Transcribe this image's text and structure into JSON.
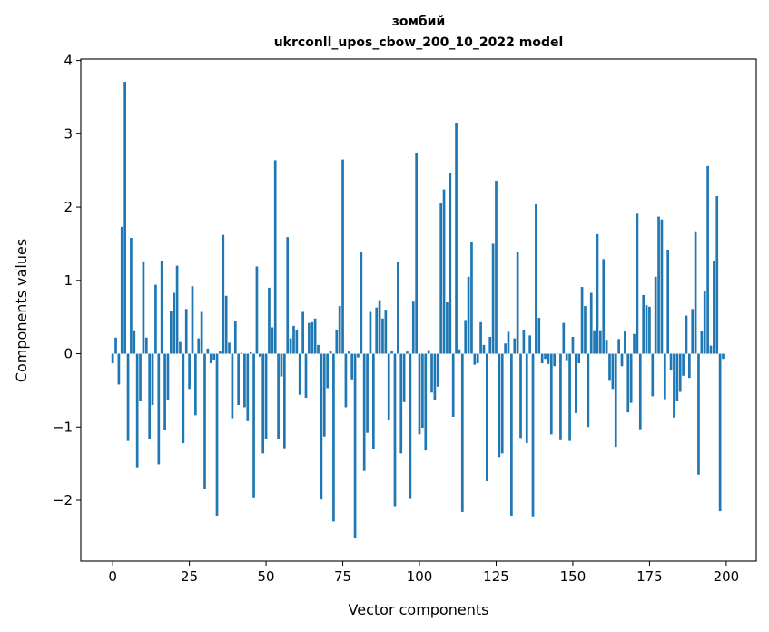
{
  "chart_data": {
    "type": "bar",
    "title": [
      "зомбий",
      "ukrconll_upos_cbow_200_10_2022 model"
    ],
    "xlabel": "Vector components",
    "ylabel": "Components values",
    "xlim": [
      -10.4,
      209.8
    ],
    "ylim": [
      -2.83,
      4.02
    ],
    "xticks": [
      0,
      25,
      50,
      75,
      100,
      125,
      150,
      175,
      200
    ],
    "yticks": [
      -2,
      -1,
      0,
      1,
      2,
      3,
      4
    ],
    "xtick_labels": [
      "0",
      "25",
      "50",
      "75",
      "100",
      "125",
      "150",
      "175",
      "200"
    ],
    "ytick_labels": [
      "−2",
      "−1",
      "0",
      "1",
      "2",
      "3",
      "4"
    ],
    "grid": false,
    "color": "#1f77b4",
    "values": [
      -0.13,
      0.22,
      -0.42,
      1.73,
      3.71,
      -1.19,
      1.58,
      0.32,
      -1.55,
      -0.65,
      1.26,
      0.22,
      -1.17,
      -0.7,
      0.94,
      -1.51,
      1.27,
      -1.04,
      -0.63,
      0.58,
      0.83,
      1.2,
      0.16,
      -1.22,
      0.61,
      -0.48,
      0.92,
      -0.84,
      0.21,
      0.57,
      -1.85,
      0.07,
      -0.13,
      -0.09,
      -2.21,
      0.03,
      1.62,
      0.79,
      0.15,
      -0.88,
      0.45,
      -0.7,
      0.01,
      -0.73,
      -0.92,
      0.02,
      -1.96,
      1.19,
      -0.04,
      -1.36,
      -1.17,
      0.9,
      0.36,
      2.64,
      -1.17,
      -0.31,
      -1.29,
      1.59,
      0.21,
      0.38,
      0.33,
      -0.56,
      0.57,
      -0.6,
      0.42,
      0.43,
      0.48,
      0.12,
      -1.99,
      -1.13,
      -0.47,
      0.04,
      -2.29,
      0.33,
      0.65,
      2.65,
      -0.73,
      0.03,
      -0.35,
      -2.52,
      -0.05,
      1.39,
      -1.6,
      -1.08,
      0.57,
      -1.3,
      0.63,
      0.73,
      0.48,
      0.6,
      -0.9,
      0.04,
      -2.08,
      1.25,
      -1.36,
      -0.66,
      0.03,
      -1.97,
      0.71,
      2.74,
      -1.1,
      -1.01,
      -1.32,
      0.05,
      -0.53,
      -0.63,
      -0.45,
      2.05,
      2.24,
      0.7,
      2.47,
      -0.86,
      3.15,
      0.06,
      -2.16,
      0.46,
      1.05,
      1.52,
      -0.15,
      -0.13,
      0.43,
      0.12,
      -1.74,
      0.23,
      1.5,
      2.36,
      -1.41,
      -1.36,
      0.14,
      0.3,
      -2.21,
      0.21,
      1.39,
      -1.15,
      0.33,
      -1.22,
      0.25,
      -2.22,
      2.04,
      0.49,
      -0.13,
      -0.07,
      -0.14,
      -1.1,
      -0.17,
      0.0,
      -1.18,
      0.42,
      -0.1,
      -1.19,
      0.23,
      -0.81,
      -0.13,
      0.91,
      0.65,
      -1.0,
      0.83,
      0.32,
      1.63,
      0.32,
      1.29,
      0.19,
      -0.37,
      -0.48,
      -1.27,
      0.2,
      -0.17,
      0.31,
      -0.8,
      -0.67,
      0.27,
      1.91,
      -1.03,
      0.8,
      0.66,
      0.64,
      -0.58,
      1.05,
      1.87,
      1.83,
      -0.62,
      1.42,
      -0.23,
      -0.87,
      -0.65,
      -0.52,
      -0.3,
      0.52,
      -0.33,
      0.61,
      1.67,
      -1.65,
      0.31,
      0.86,
      2.56,
      0.11,
      1.27,
      2.15,
      -2.15,
      -0.07
    ]
  }
}
